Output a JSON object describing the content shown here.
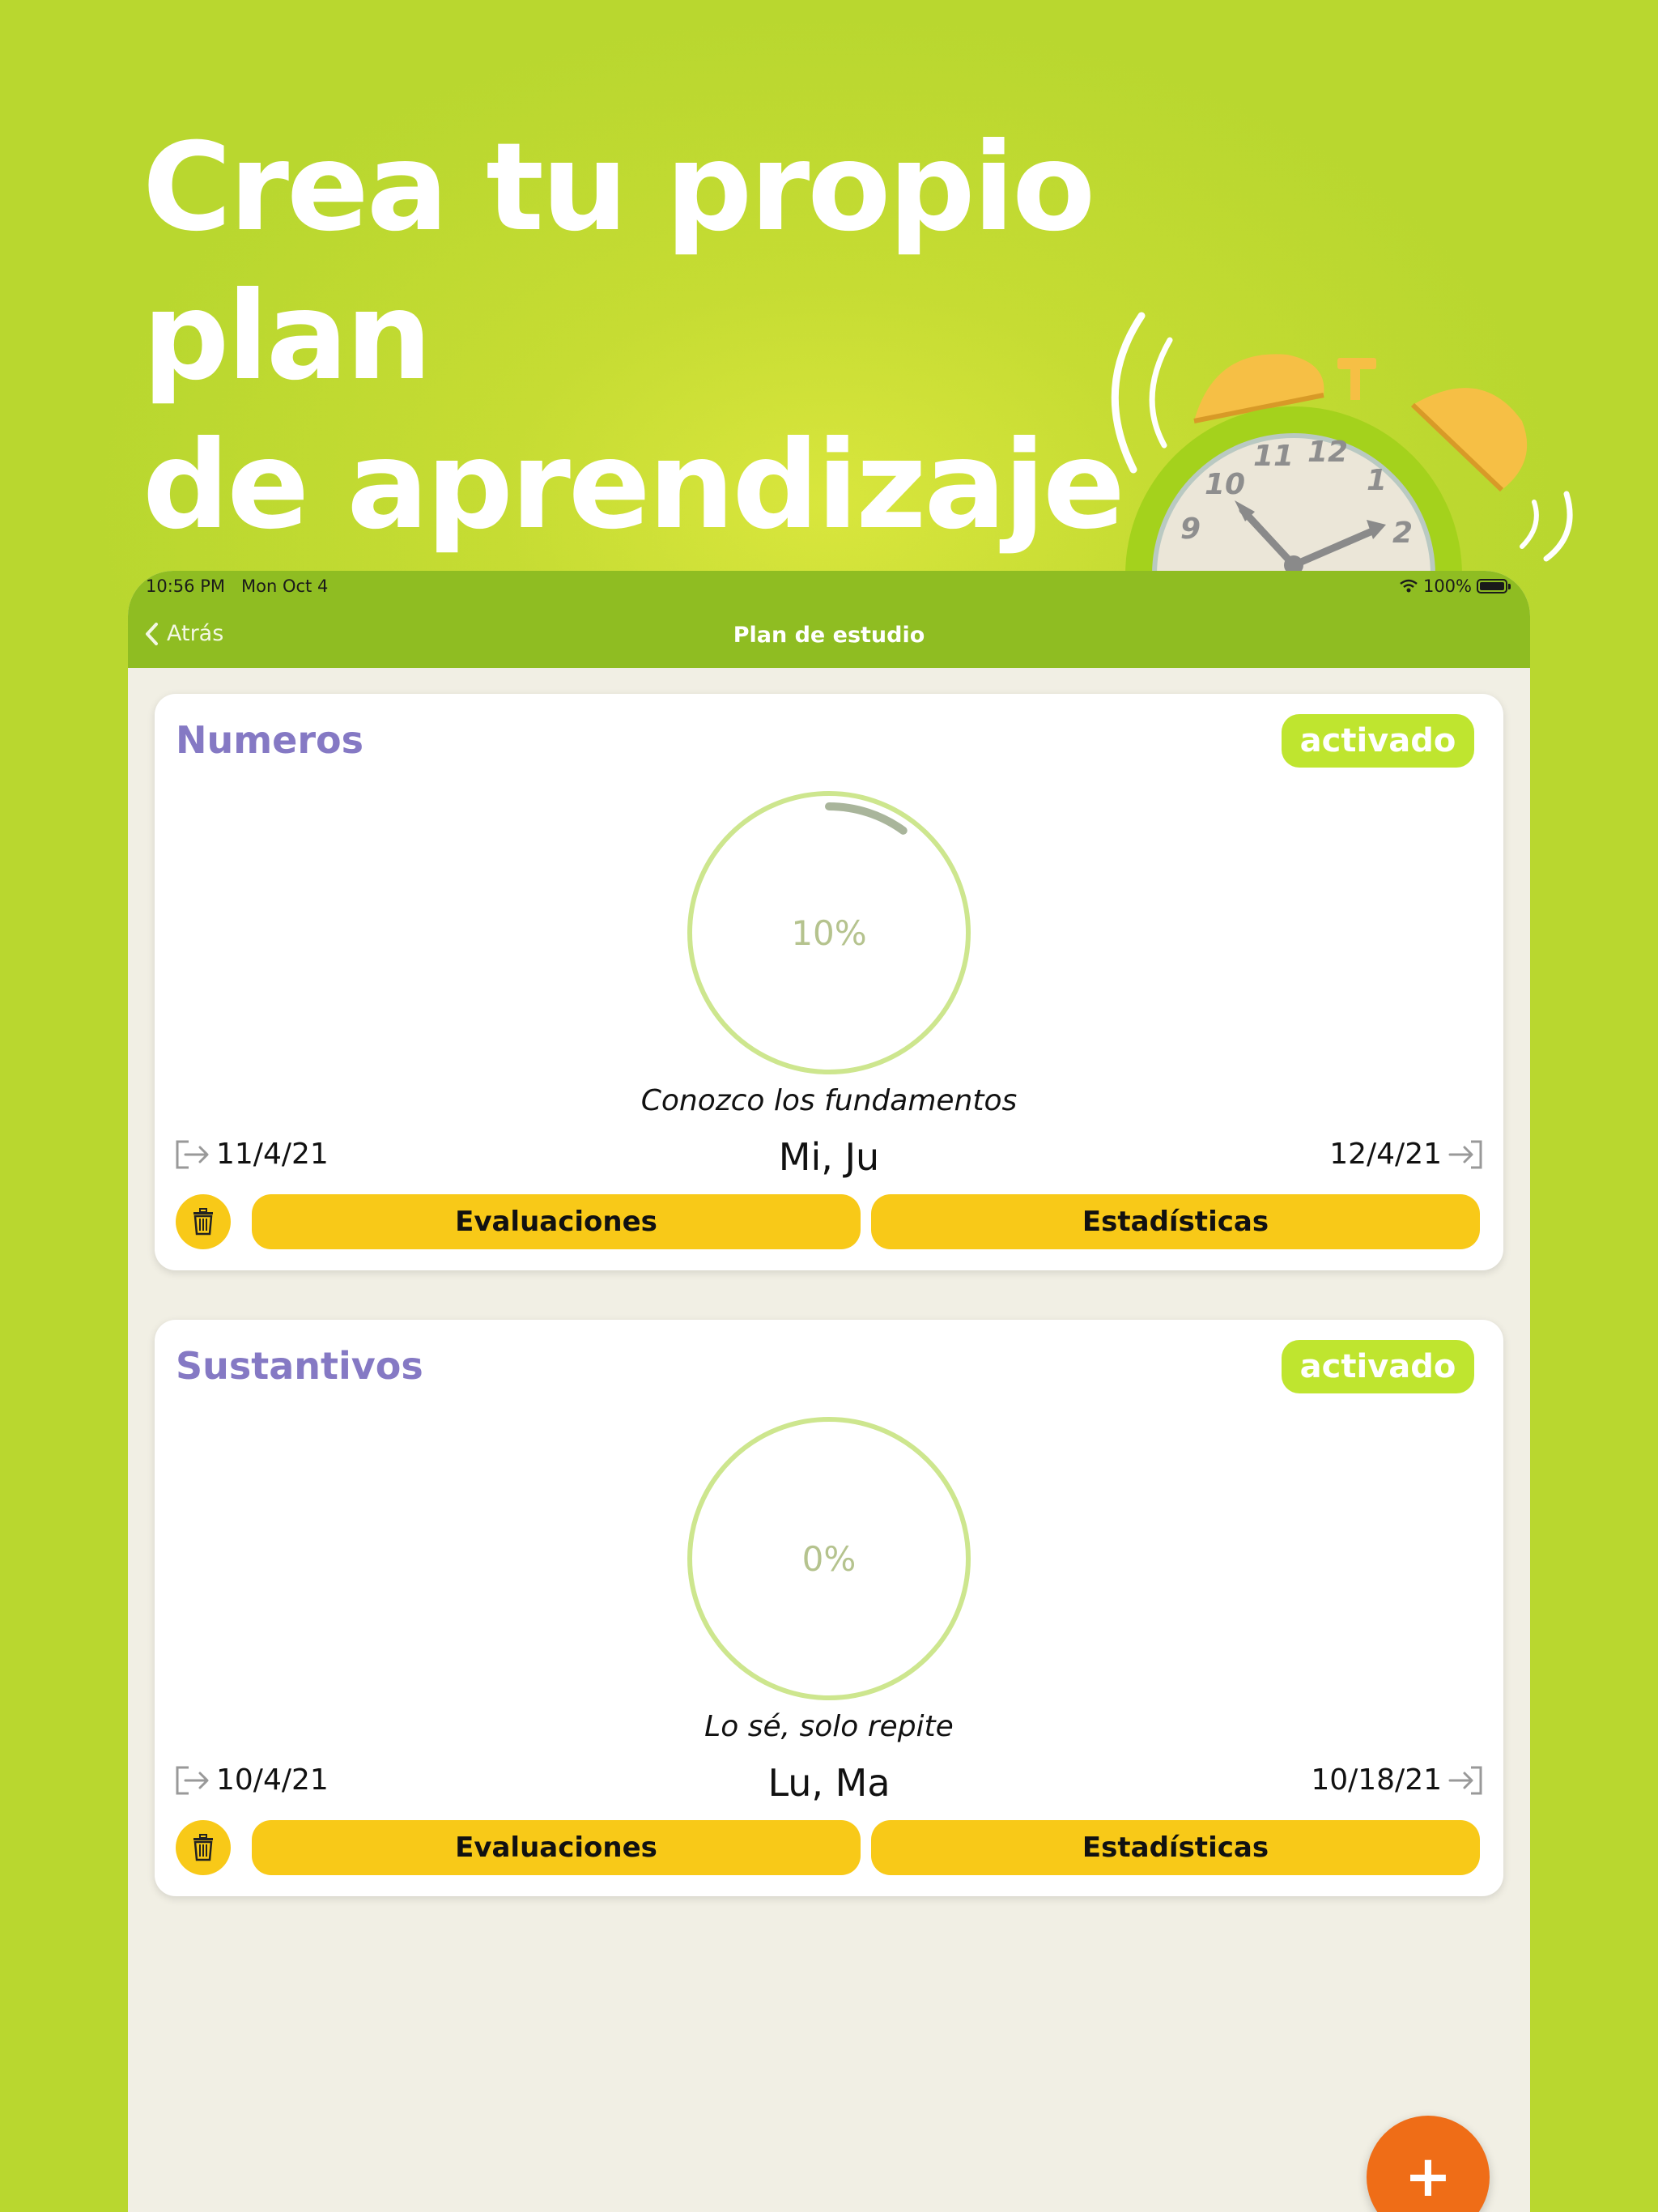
{
  "headline": {
    "line1": "Crea tu propio plan",
    "line2": "de aprendizaje"
  },
  "clock": {
    "numbers": [
      "9",
      "10",
      "11",
      "12",
      "1",
      "2"
    ]
  },
  "statusbar": {
    "time": "10:56 PM",
    "date": "Mon Oct 4",
    "battery": "100%"
  },
  "navbar": {
    "back_label": "Atrás",
    "title": "Plan de estudio"
  },
  "plans": [
    {
      "title": "Numeros",
      "status": "activado",
      "progress_label": "10%",
      "progress": 0.1,
      "level": "Conozco los fundamentos",
      "start_date": "11/4/21",
      "days": "Mi, Ju",
      "end_date": "12/4/21",
      "evaluations_label": "Evaluaciones",
      "stats_label": "Estadísticas"
    },
    {
      "title": "Sustantivos",
      "status": "activado",
      "progress_label": "0%",
      "progress": 0,
      "level": "Lo sé, solo repite",
      "start_date": "10/4/21",
      "days": "Lu, Ma",
      "end_date": "10/18/21",
      "evaluations_label": "Evaluaciones",
      "stats_label": "Estadísticas"
    }
  ],
  "fab_label": "+",
  "colors": {
    "background": "#c2da32",
    "navbar": "#8fbd22",
    "title": "#8579c4",
    "badge": "#bfe52f",
    "button": "#f8c918",
    "fab": "#ef6d17",
    "ring": "#cde68e",
    "progress": "#a9b59b"
  }
}
